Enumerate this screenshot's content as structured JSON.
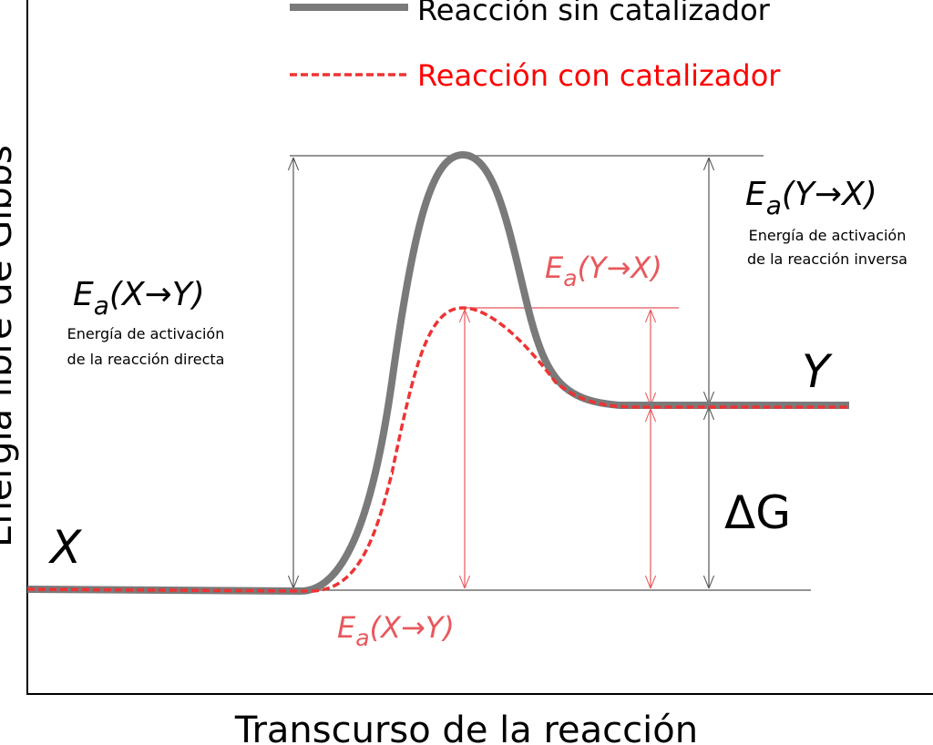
{
  "axes": {
    "y_label": "Energía libre de Gibbs",
    "x_label": "Transcurso de la reacción"
  },
  "legend": {
    "uncatalyzed": "Reacción sin catalizador",
    "catalyzed": "Reacción con catalizador"
  },
  "states": {
    "reactant": "X",
    "product": "Y",
    "delta_g": "ΔG"
  },
  "annotations": {
    "ea_reverse": {
      "symbol": "E",
      "subscript": "a",
      "args": "(Y→X)",
      "description": [
        "Energía de activación",
        "de la reacción inversa"
      ]
    },
    "ea_forward": {
      "symbol": "E",
      "subscript": "a",
      "args": "(X→Y)",
      "description": [
        "Energía de activación",
        "de la reacción directa"
      ]
    },
    "ea_reverse_catalyzed": {
      "symbol": "E",
      "subscript": "a",
      "args": "(Y→X)"
    },
    "ea_forward_catalyzed": {
      "symbol": "E",
      "subscript": "a",
      "args": "(X→Y)"
    }
  }
}
